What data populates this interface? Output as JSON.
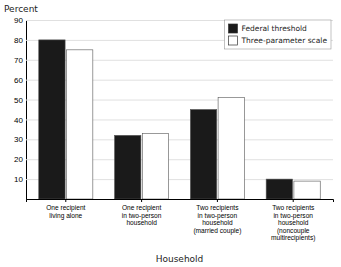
{
  "chart_data": {
    "type": "bar",
    "xlabel": "Household",
    "ylabel": "Percent",
    "categories": [
      "One recipient\nliving alone",
      "One recipient\nin two-person\nhousehold",
      "Two recipients\nin two-person\nhousehold\n(married couple)",
      "Two recipients\nin two-person\nhousehold\n(noncouple\nmultirecipients)"
    ],
    "series": [
      {
        "name": "Federal threshold",
        "color": "#1a1a1a",
        "values": [
          80,
          32,
          45,
          10
        ]
      },
      {
        "name": "Three-parameter scale",
        "color": "#ffffff",
        "values": [
          75,
          33,
          51,
          9
        ]
      }
    ],
    "ylim": [
      0,
      90
    ],
    "yticks": [
      10,
      20,
      30,
      40,
      50,
      60,
      70,
      80,
      90
    ],
    "grid": true,
    "legend": "upper right"
  }
}
